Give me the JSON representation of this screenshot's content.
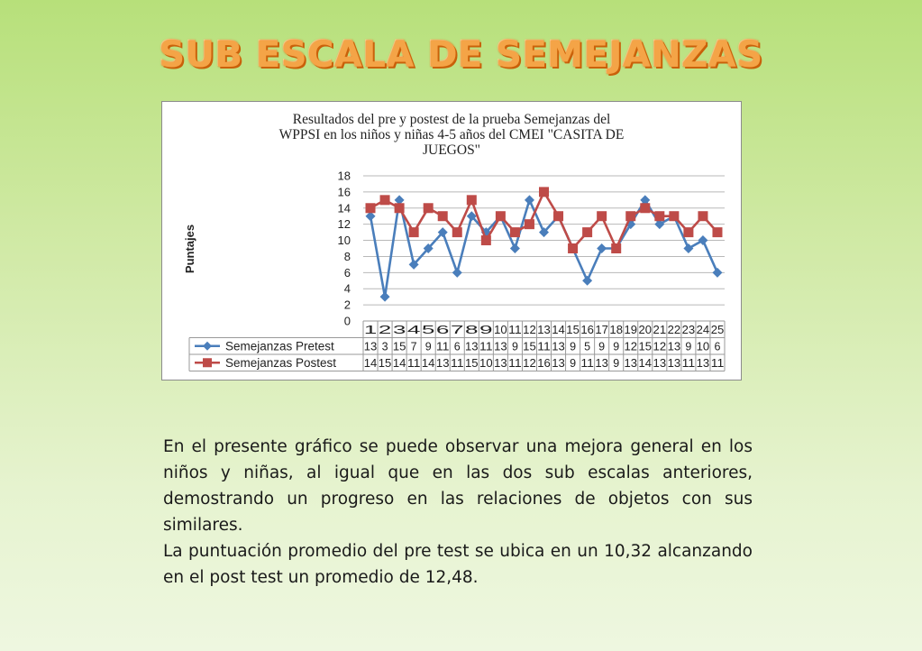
{
  "page": {
    "title": "SUB ESCALA DE SEMEJANZAS",
    "paragraphs": [
      "En el presente gráfico se puede observar una mejora general en los niños y niñas, al igual que en las dos sub escalas anteriores, demostrando un progreso en las relaciones de objetos con sus similares.",
      "La puntuación promedio del pre test se ubica en un  10,32 alcanzando en el post test un promedio de 12,48."
    ]
  },
  "chart_data": {
    "type": "line",
    "title_lines": [
      "Resultados del pre y postest de la prueba Semejanzas del",
      "WPPSI en los niños  y niñas 4-5 años del CMEI \"CASITA DE",
      "JUEGOS\""
    ],
    "ylabel": "Puntajes",
    "xlabel": "",
    "ylim": [
      0,
      18
    ],
    "yticks": [
      0,
      2,
      4,
      6,
      8,
      10,
      12,
      14,
      16,
      18
    ],
    "grid": true,
    "legend": "data-table-left",
    "categories": [
      "1",
      "2",
      "3",
      "4",
      "5",
      "6",
      "7",
      "8",
      "9",
      "10",
      "11",
      "12",
      "13",
      "14",
      "15",
      "16",
      "17",
      "18",
      "19",
      "20",
      "21",
      "22",
      "23",
      "24",
      "25"
    ],
    "series": [
      {
        "name": "Semejanzas Pretest",
        "color": "#4a7ebb",
        "marker": "diamond",
        "values": [
          13,
          3,
          15,
          7,
          9,
          11,
          6,
          13,
          11,
          13,
          9,
          15,
          11,
          13,
          9,
          5,
          9,
          9,
          12,
          15,
          12,
          13,
          9,
          10,
          6
        ],
        "table_text": [
          "13",
          "3",
          "15",
          "7",
          "9",
          "11",
          "6",
          "13",
          "11",
          "13",
          "9",
          "15",
          "11",
          "13",
          "9",
          "5",
          "9",
          "9",
          "12",
          "15",
          "12",
          "13",
          "9",
          "10",
          "6"
        ]
      },
      {
        "name": "Semejanzas Postest",
        "color": "#be4b48",
        "marker": "square",
        "values": [
          14,
          15,
          14,
          11,
          14,
          13,
          11,
          15,
          10,
          13,
          11,
          12,
          16,
          13,
          9,
          11,
          13,
          9,
          13,
          14,
          13,
          13,
          11,
          13,
          11
        ],
        "table_text": [
          "14",
          "15",
          "14",
          "11",
          "14",
          "13",
          "11",
          "15",
          "10",
          "13",
          "11",
          "12",
          "16",
          "13",
          "9",
          "11",
          "13",
          "9",
          "13",
          "14",
          "13",
          "13",
          "11",
          "13",
          "11"
        ]
      }
    ]
  }
}
